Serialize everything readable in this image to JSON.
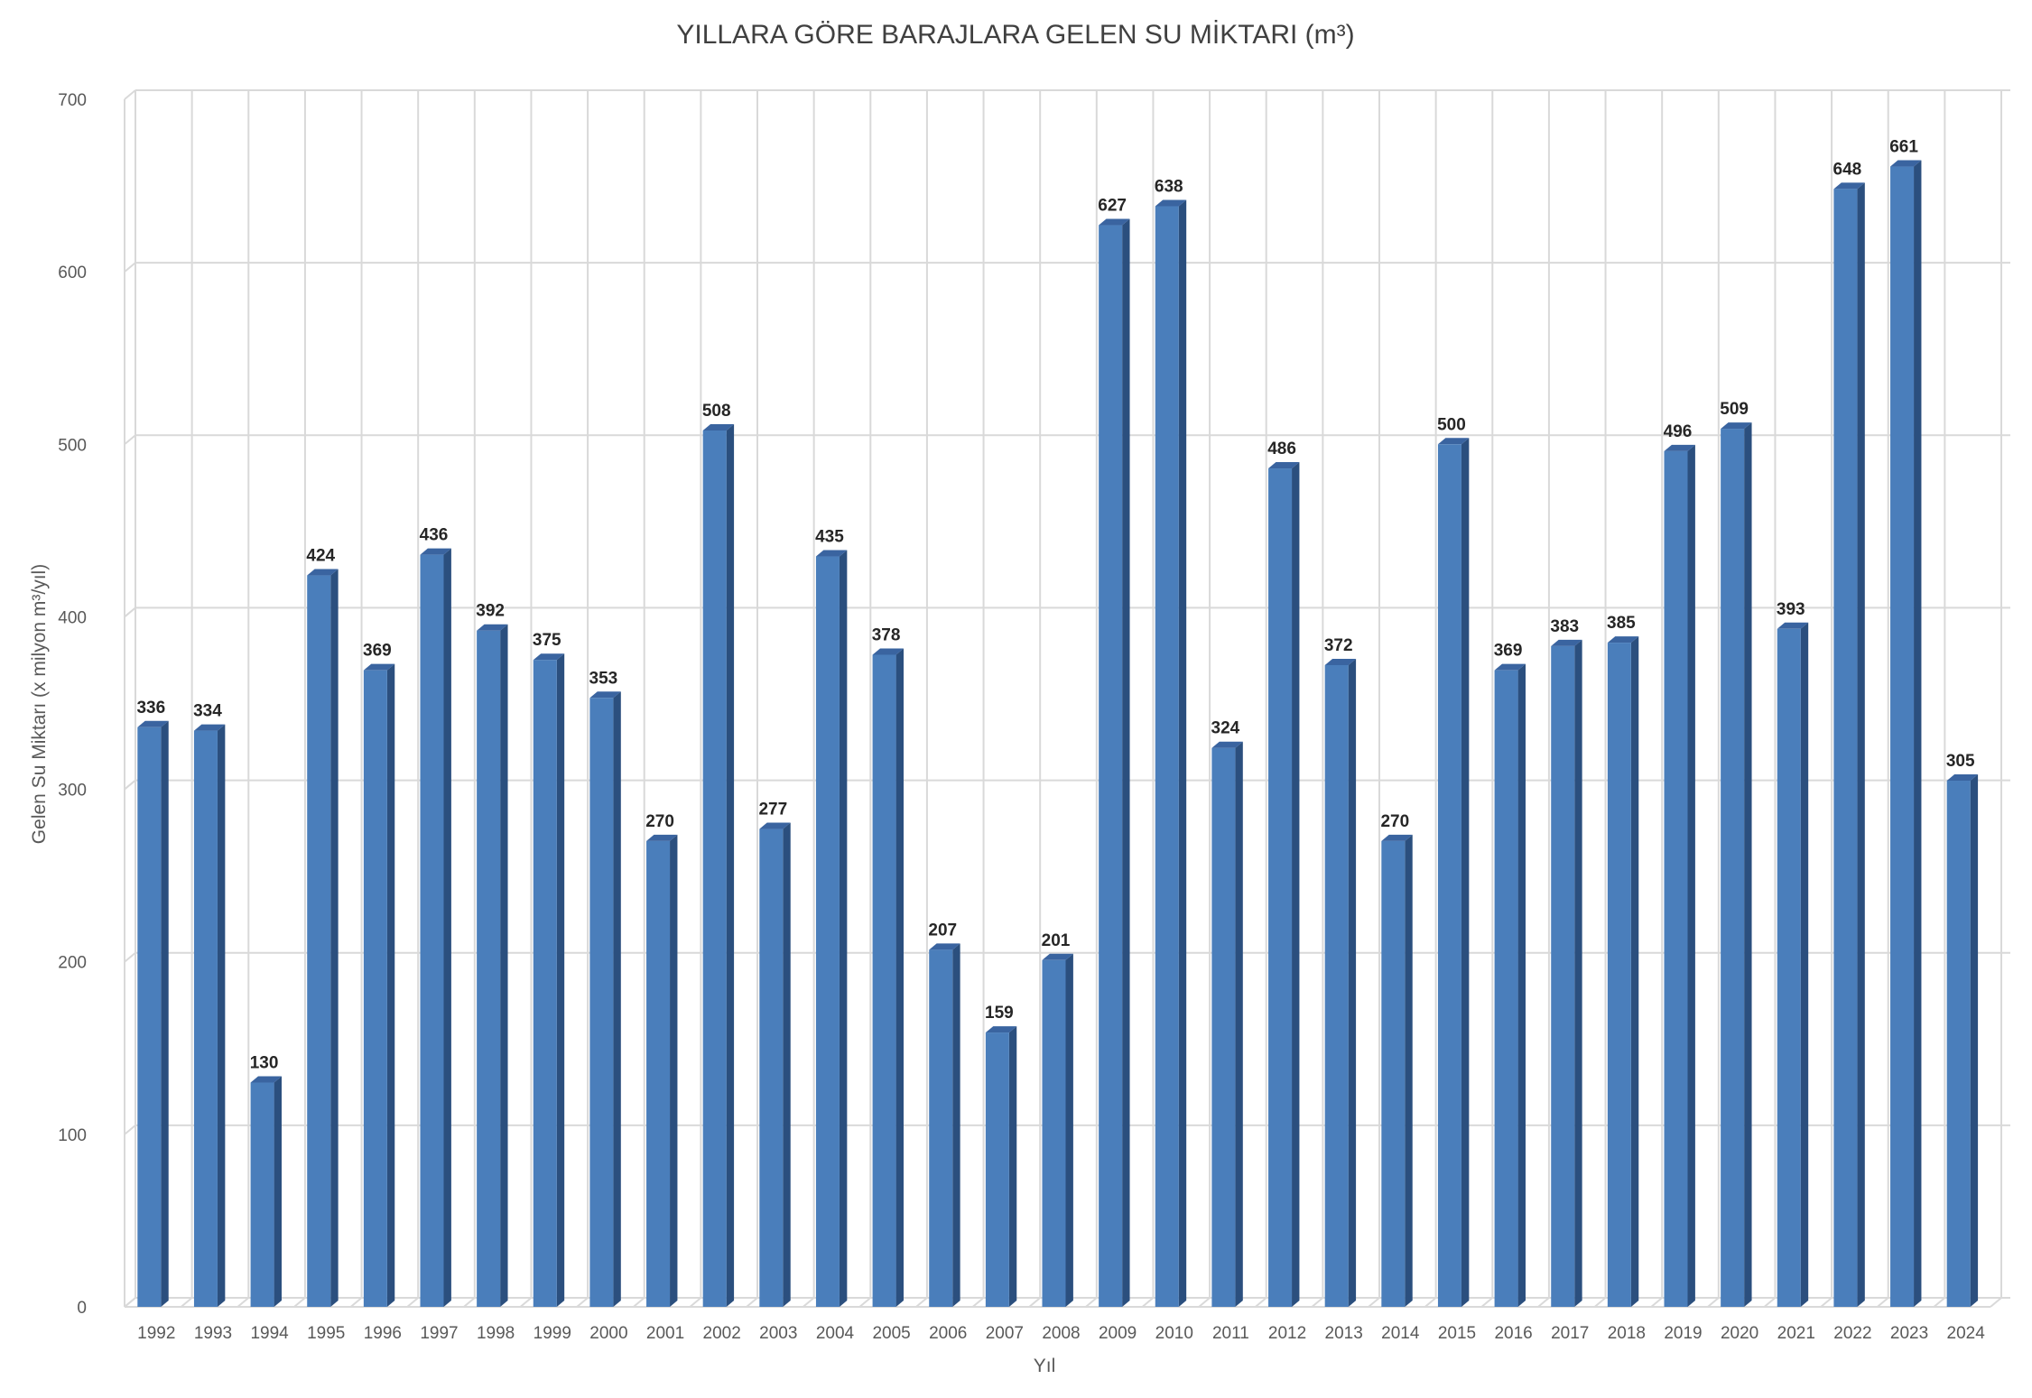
{
  "chart_data": {
    "type": "bar",
    "title": "YILLARA GÖRE BARAJLARA GELEN SU MİKTARI (m³)",
    "xlabel": "Yıl",
    "ylabel": "Gelen Su Miktarı (x milyon m³/yıl)",
    "ylim": [
      0,
      700
    ],
    "yticks": [
      0,
      100,
      200,
      300,
      400,
      500,
      600,
      700
    ],
    "grid": true,
    "three_d": true,
    "bar_color": "#4a7ebb",
    "bar_side_color": "#2b4f7e",
    "bar_top_color": "#3a64a0",
    "categories": [
      "1992",
      "1993",
      "1994",
      "1995",
      "1996",
      "1997",
      "1998",
      "1999",
      "2000",
      "2001",
      "2002",
      "2003",
      "2004",
      "2005",
      "2006",
      "2007",
      "2008",
      "2009",
      "2010",
      "2011",
      "2012",
      "2013",
      "2014",
      "2015",
      "2016",
      "2017",
      "2018",
      "2019",
      "2020",
      "2021",
      "2022",
      "2023",
      "2024"
    ],
    "values": [
      336,
      334,
      130,
      424,
      369,
      436,
      392,
      375,
      353,
      270,
      508,
      277,
      435,
      378,
      207,
      159,
      201,
      627,
      638,
      324,
      486,
      372,
      270,
      500,
      369,
      383,
      385,
      496,
      509,
      393,
      648,
      661,
      305
    ],
    "data_labels": [
      "336",
      "334",
      "130",
      "424",
      "369",
      "436",
      "392",
      "375",
      "353",
      "270",
      "508",
      "277",
      "435",
      "378",
      "207",
      "159",
      "201",
      "627",
      "638",
      "324",
      "486",
      "372",
      "270",
      "500",
      "369",
      "383",
      "385",
      "496",
      "509",
      "393",
      "648",
      "661",
      "305"
    ]
  }
}
